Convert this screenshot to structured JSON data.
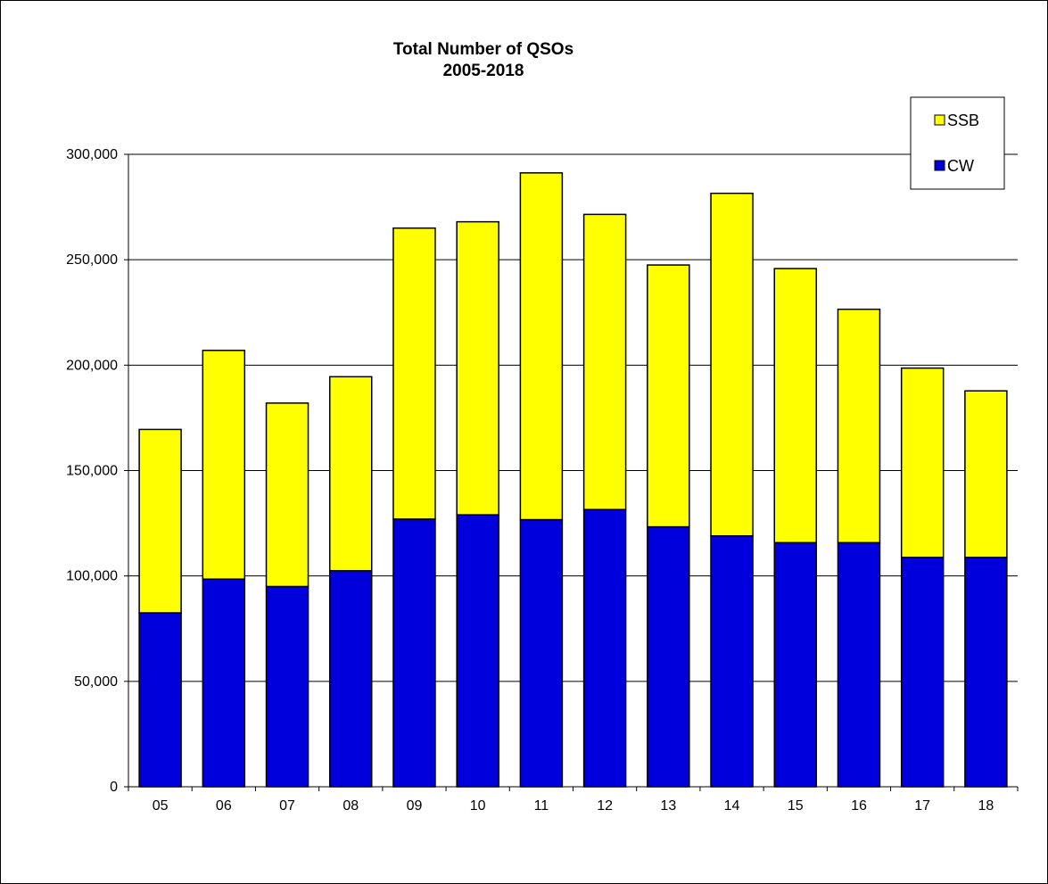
{
  "chart_data": {
    "type": "bar",
    "stacked": true,
    "title": [
      "Total Number of QSOs",
      "2005-2018"
    ],
    "categories": [
      "05",
      "06",
      "07",
      "08",
      "09",
      "10",
      "11",
      "12",
      "13",
      "14",
      "15",
      "16",
      "17",
      "18"
    ],
    "series": [
      {
        "name": "CW",
        "color": "#0000dd",
        "values": [
          82500,
          98500,
          95000,
          102500,
          127000,
          129000,
          126700,
          131500,
          123300,
          119000,
          115800,
          115800,
          108800,
          108800
        ]
      },
      {
        "name": "SSB",
        "color": "#ffff00",
        "values": [
          87000,
          108500,
          87000,
          92000,
          138000,
          139000,
          164500,
          140000,
          124200,
          162500,
          130000,
          110700,
          89800,
          79000
        ]
      }
    ],
    "ylim": [
      0,
      300000
    ],
    "yticks": [
      0,
      50000,
      100000,
      150000,
      200000,
      250000,
      300000
    ],
    "ytick_labels": [
      "0",
      "50,000",
      "100,000",
      "150,000",
      "200,000",
      "250,000",
      "300,000"
    ],
    "grid": true,
    "legend": {
      "placement": "top-right",
      "order": [
        "SSB",
        "CW"
      ]
    }
  }
}
